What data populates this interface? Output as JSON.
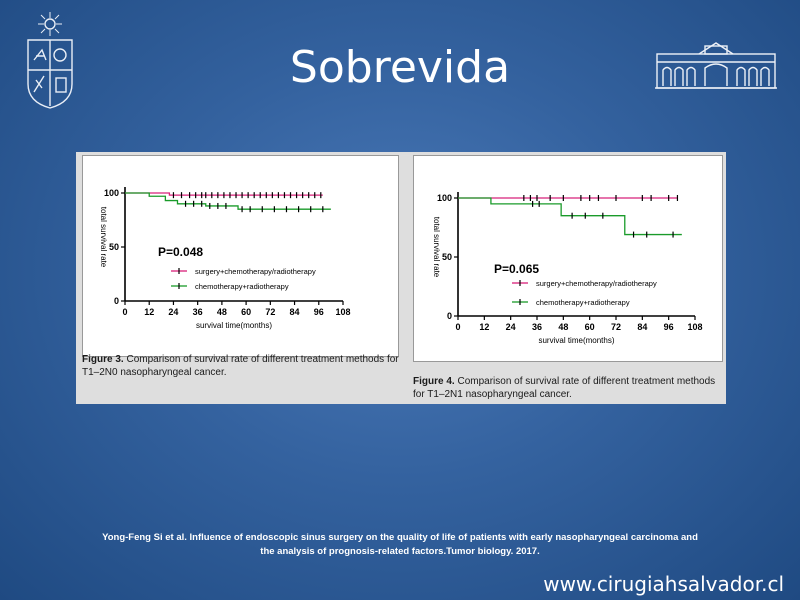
{
  "slide": {
    "title": "Sobrevida",
    "citation_line1": "Yong-Feng Si et al. Influence of endoscopic sinus surgery on the quality of life of patients with early nasopharyngeal carcinoma and",
    "citation_line2": "the analysis of prognosis-related factors.Tumor biology. 2017.",
    "website": "www.cirugiahsalvador.cl"
  },
  "captions": {
    "fig3_label": "Figure 3.",
    "fig3_text": "Comparison of survival rate of different treatment methods for T1–2N0 nasopharyngeal cancer.",
    "fig4_label": "Figure 4.",
    "fig4_text": "Comparison of survival rate of different treatment methods for T1–2N1 nasopharyngeal cancer."
  },
  "colors": {
    "surgery": "#d8217a",
    "chemo": "#1a9b2a",
    "axis": "#000000"
  },
  "chart_data": [
    {
      "type": "line",
      "xlabel": "survival time(months)",
      "ylabel": "total survival rate",
      "xticks": [
        0,
        12,
        24,
        36,
        48,
        60,
        72,
        84,
        96,
        108
      ],
      "yticks": [
        0,
        50,
        100
      ],
      "xlim": [
        0,
        108
      ],
      "ylim": [
        0,
        100
      ],
      "annotation": "P=0.048",
      "legend": [
        "surgery+chemotherapy/radiotherapy",
        "chemotherapy+radiotherapy"
      ],
      "series": [
        {
          "name": "surgery+chemotherapy/radiotherapy",
          "x": [
            0,
            22,
            22,
            98
          ],
          "y": [
            100,
            100,
            98,
            98
          ],
          "censor_x": [
            24,
            28,
            32,
            35,
            38,
            40,
            43,
            46,
            49,
            52,
            55,
            58,
            61,
            64,
            67,
            70,
            73,
            76,
            79,
            82,
            85,
            88,
            91,
            94,
            97
          ]
        },
        {
          "name": "chemotherapy+radiotherapy",
          "x": [
            0,
            12,
            12,
            20,
            20,
            26,
            26,
            40,
            40,
            56,
            56,
            102
          ],
          "y": [
            100,
            100,
            97,
            97,
            93,
            93,
            90,
            90,
            88,
            88,
            85,
            85
          ],
          "censor_x": [
            30,
            34,
            38,
            42,
            46,
            50,
            58,
            62,
            68,
            74,
            80,
            86,
            92,
            98
          ]
        }
      ]
    },
    {
      "type": "line",
      "xlabel": "survival time(months)",
      "ylabel": "total survival rate",
      "xticks": [
        0,
        12,
        24,
        36,
        48,
        60,
        72,
        84,
        96,
        108
      ],
      "yticks": [
        0,
        50,
        100
      ],
      "xlim": [
        0,
        108
      ],
      "ylim": [
        0,
        100
      ],
      "annotation": "P=0.065",
      "legend": [
        "surgery+chemotherapy/radiotherapy",
        "chemotherapy+radiotherapy"
      ],
      "series": [
        {
          "name": "surgery+chemotherapy/radiotherapy",
          "x": [
            0,
            100
          ],
          "y": [
            100,
            100
          ],
          "censor_x": [
            30,
            33,
            36,
            42,
            48,
            56,
            60,
            64,
            72,
            84,
            88,
            96,
            100
          ]
        },
        {
          "name": "chemotherapy+radiotherapy",
          "x": [
            0,
            15,
            15,
            47,
            47,
            76,
            76,
            102
          ],
          "y": [
            100,
            100,
            95,
            95,
            85,
            85,
            69,
            69
          ],
          "censor_x": [
            34,
            37,
            52,
            58,
            66,
            80,
            86,
            98
          ]
        }
      ]
    }
  ]
}
